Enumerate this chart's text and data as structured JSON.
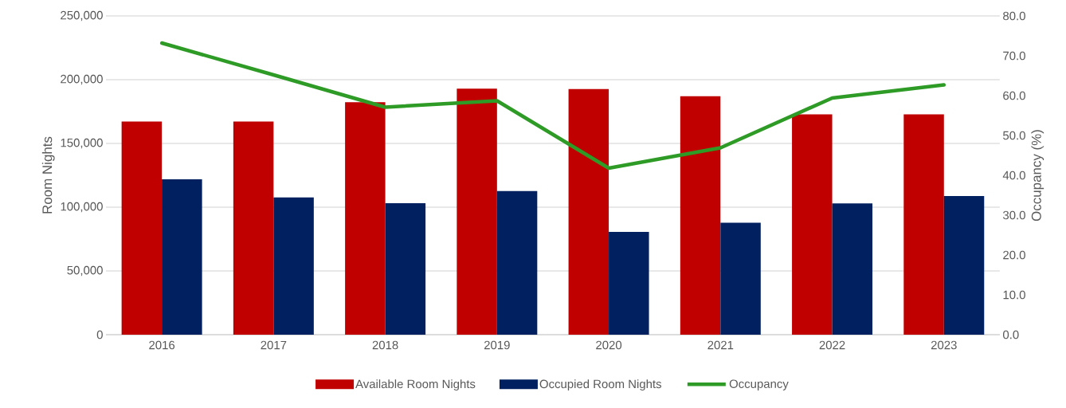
{
  "chart_data": {
    "type": "bar",
    "categories": [
      "2016",
      "2017",
      "2018",
      "2019",
      "2020",
      "2021",
      "2022",
      "2023"
    ],
    "series": [
      {
        "name": "Available Room Nights",
        "color": "#c00000",
        "values": [
          167200,
          167200,
          182300,
          192900,
          192700,
          187000,
          172800,
          172800
        ]
      },
      {
        "name": "Occupied Room Nights",
        "color": "#002060",
        "values": [
          121900,
          107600,
          103200,
          112600,
          80600,
          87800,
          103000,
          108700
        ]
      },
      {
        "name": "Occupancy",
        "type": "line",
        "axis": "y2",
        "color": "#2e9b26",
        "values": [
          73.2,
          65.2,
          57.1,
          58.7,
          41.8,
          46.9,
          59.4,
          62.7
        ]
      }
    ],
    "ylabel": "Room Nights",
    "y2label": "Occupancy (%)",
    "ylim": [
      0,
      250000
    ],
    "yticks": [
      {
        "value": 0,
        "label": "0"
      },
      {
        "value": 50000,
        "label": "50,000"
      },
      {
        "value": 100000,
        "label": "100,000"
      },
      {
        "value": 150000,
        "label": "150,000"
      },
      {
        "value": 200000,
        "label": "200,000"
      },
      {
        "value": 250000,
        "label": "250,000"
      }
    ],
    "y2lim": [
      0,
      80
    ],
    "y2ticks": [
      {
        "value": 0,
        "label": "0.0"
      },
      {
        "value": 10,
        "label": "10.0"
      },
      {
        "value": 20,
        "label": "20.0"
      },
      {
        "value": 30,
        "label": "30.0"
      },
      {
        "value": 40,
        "label": "40.0"
      },
      {
        "value": 50,
        "label": "50.0"
      },
      {
        "value": 60,
        "label": "60.0"
      },
      {
        "value": 70,
        "label": "70.0"
      },
      {
        "value": 80,
        "label": "80.0"
      }
    ],
    "grid": "y",
    "legend": "bottom"
  }
}
